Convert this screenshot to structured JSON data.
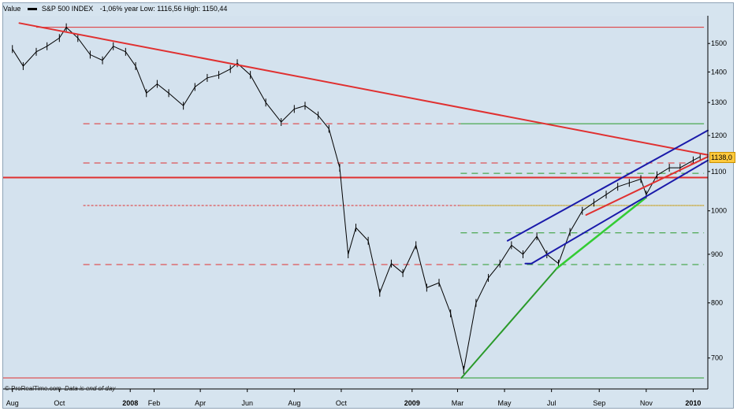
{
  "legend": {
    "value_label": "Value",
    "series_label": "S&P 500 INDEX",
    "stats": "-1,06%  year Low: 1116,56 High: 1150,44"
  },
  "watermark": {
    "logo": "© ProRealTime.com",
    "note": "Data is end of day"
  },
  "price_tag": "1138,0",
  "chart_data": {
    "type": "line",
    "title": "",
    "series": [
      {
        "name": "S&P 500 INDEX",
        "color": "#000000",
        "x": [
          "2007-08-01",
          "2007-08-15",
          "2007-09-01",
          "2007-09-15",
          "2007-10-01",
          "2007-10-10",
          "2007-10-25",
          "2007-11-10",
          "2007-11-26",
          "2007-12-10",
          "2007-12-26",
          "2008-01-08",
          "2008-01-22",
          "2008-02-05",
          "2008-02-20",
          "2008-03-10",
          "2008-03-25",
          "2008-04-10",
          "2008-04-25",
          "2008-05-10",
          "2008-05-19",
          "2008-06-05",
          "2008-06-25",
          "2008-07-15",
          "2008-08-01",
          "2008-08-15",
          "2008-09-01",
          "2008-09-15",
          "2008-09-29",
          "2008-10-10",
          "2008-10-20",
          "2008-11-05",
          "2008-11-20",
          "2008-12-05",
          "2008-12-20",
          "2009-01-06",
          "2009-01-20",
          "2009-02-05",
          "2009-02-20",
          "2009-03-09",
          "2009-03-25",
          "2009-04-10",
          "2009-04-25",
          "2009-05-10",
          "2009-05-25",
          "2009-06-12",
          "2009-06-25",
          "2009-07-10",
          "2009-07-25",
          "2009-08-10",
          "2009-08-25",
          "2009-09-10",
          "2009-09-25",
          "2009-10-10",
          "2009-10-25",
          "2009-11-01",
          "2009-11-15",
          "2009-12-01",
          "2009-12-15",
          "2010-01-01",
          "2010-01-10"
        ],
        "y": [
          1480,
          1420,
          1470,
          1490,
          1520,
          1560,
          1520,
          1460,
          1440,
          1490,
          1470,
          1420,
          1330,
          1360,
          1330,
          1290,
          1350,
          1380,
          1390,
          1410,
          1430,
          1390,
          1300,
          1240,
          1280,
          1290,
          1260,
          1220,
          1110,
          900,
          960,
          930,
          820,
          880,
          860,
          920,
          830,
          840,
          780,
          680,
          800,
          850,
          880,
          920,
          900,
          940,
          900,
          880,
          950,
          1000,
          1020,
          1040,
          1060,
          1070,
          1080,
          1040,
          1090,
          1110,
          1110,
          1130,
          1140
        ]
      }
    ],
    "yaxis": {
      "scale": "log",
      "ticks": [
        700,
        800,
        900,
        1000,
        1100,
        1200,
        1300,
        1400,
        1500
      ],
      "tick_labels": [
        "700",
        "800",
        "900",
        "1000",
        "1100",
        "1200",
        "1300",
        "1400",
        "1500"
      ],
      "range": [
        667,
        1580
      ]
    },
    "xaxis": {
      "range": [
        "2007-07-20",
        "2010-01-20"
      ],
      "ticks": [
        {
          "date": "2007-08-01",
          "label": "Aug",
          "bold": false
        },
        {
          "date": "2007-10-01",
          "label": "Oct",
          "bold": false
        },
        {
          "date": "2008-01-01",
          "label": "2008",
          "bold": true
        },
        {
          "date": "2008-02-01",
          "label": "Feb",
          "bold": false
        },
        {
          "date": "2008-04-01",
          "label": "Apr",
          "bold": false
        },
        {
          "date": "2008-06-01",
          "label": "Jun",
          "bold": false
        },
        {
          "date": "2008-08-01",
          "label": "Aug",
          "bold": false
        },
        {
          "date": "2008-10-01",
          "label": "Oct",
          "bold": false
        },
        {
          "date": "2009-01-01",
          "label": "2009",
          "bold": true
        },
        {
          "date": "2009-03-01",
          "label": "Mar",
          "bold": false
        },
        {
          "date": "2009-05-01",
          "label": "May",
          "bold": false
        },
        {
          "date": "2009-07-01",
          "label": "Jul",
          "bold": false
        },
        {
          "date": "2009-09-01",
          "label": "Sep",
          "bold": false
        },
        {
          "date": "2009-11-01",
          "label": "Nov",
          "bold": false
        },
        {
          "date": "2010-01-01",
          "label": "2010",
          "bold": true
        }
      ]
    },
    "grid": false,
    "annotations": {
      "horizontal_lines": [
        {
          "value": 1560,
          "color": "#e03030",
          "style": "solid",
          "from": "2007-09-01",
          "to": "2010-01-15"
        },
        {
          "value": 1235,
          "color": "#e03030",
          "style": "dashed",
          "from": "2007-11-01",
          "to": "2009-03-05"
        },
        {
          "value": 1235,
          "color": "#2a9a2a",
          "style": "solid",
          "from": "2009-03-05",
          "to": "2010-01-15"
        },
        {
          "value": 1123,
          "color": "#e03030",
          "style": "dashed",
          "from": "2007-11-01",
          "to": "2010-01-15"
        },
        {
          "value": 1095,
          "color": "#2a9a2a",
          "style": "dashed",
          "from": "2009-03-05",
          "to": "2010-01-15"
        },
        {
          "value": 1084,
          "color": "#e03030",
          "style": "solid-thick",
          "from": "2007-07-20",
          "to": "2010-01-20"
        },
        {
          "value": 1013,
          "color": "#e03030",
          "style": "dashed-fine",
          "from": "2007-11-01",
          "to": "2009-03-05"
        },
        {
          "value": 1013,
          "color": "#c8a020",
          "style": "dotted",
          "from": "2009-03-05",
          "to": "2010-01-15"
        },
        {
          "value": 948,
          "color": "#2a9a2a",
          "style": "dashed",
          "from": "2009-03-05",
          "to": "2010-01-15"
        },
        {
          "value": 878,
          "color": "#e03030",
          "style": "dashed",
          "from": "2007-11-01",
          "to": "2009-03-05"
        },
        {
          "value": 878,
          "color": "#2a9a2a",
          "style": "dashed",
          "from": "2009-03-05",
          "to": "2010-01-15"
        },
        {
          "value": 667,
          "color": "#e03030",
          "style": "solid",
          "from": "2007-07-20",
          "to": "2009-03-05"
        },
        {
          "value": 667,
          "color": "#2a9a2a",
          "style": "solid",
          "from": "2009-03-05",
          "to": "2010-01-15"
        }
      ],
      "trend_lines": [
        {
          "color": "#e03030",
          "width": 2,
          "from": [
            "2007-08-10",
            1576
          ],
          "to": [
            "2010-01-20",
            1145
          ]
        },
        {
          "color": "#2a9a2a",
          "width": 2,
          "from": [
            "2009-03-06",
            667
          ],
          "to": [
            "2009-07-08",
            870
          ]
        },
        {
          "color": "#33cc33",
          "width": 2.5,
          "from": [
            "2009-07-08",
            870
          ],
          "to": [
            "2009-10-30",
            1030
          ]
        },
        {
          "color": "#1a1aaa",
          "width": 2,
          "from": [
            "2009-05-05",
            930
          ],
          "to": [
            "2010-01-20",
            1215
          ]
        },
        {
          "color": "#1a1aaa",
          "width": 2,
          "from": [
            "2009-06-05",
            880
          ],
          "to": [
            "2010-01-20",
            1130
          ]
        },
        {
          "color": "#1a1aaa",
          "width": 2,
          "from": [
            "2009-05-28",
            880
          ],
          "to": [
            "2009-06-05",
            880
          ]
        },
        {
          "color": "#e03030",
          "width": 2,
          "from": [
            "2009-08-15",
            990
          ],
          "to": [
            "2010-01-20",
            1140
          ]
        }
      ]
    }
  }
}
